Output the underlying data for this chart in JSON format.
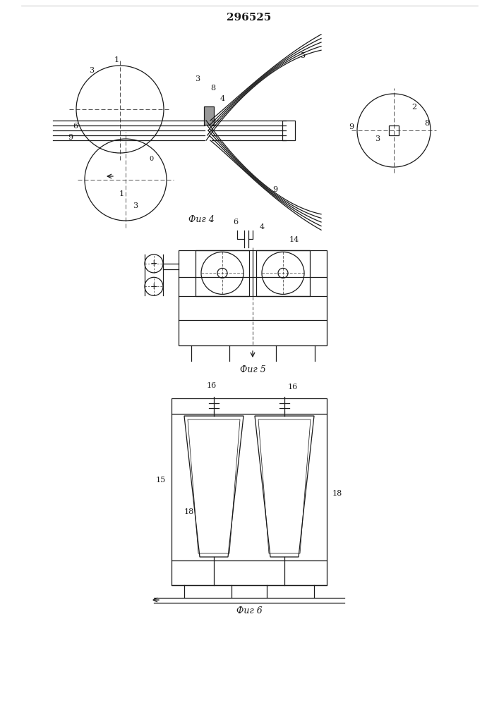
{
  "patent_number": "296525",
  "fig4_label": "Фиг 4",
  "fig5_label": "Фиг 5",
  "fig6_label": "Фиг 6",
  "bg_color": "#ffffff",
  "line_color": "#1a1a1a",
  "line_width": 0.9
}
